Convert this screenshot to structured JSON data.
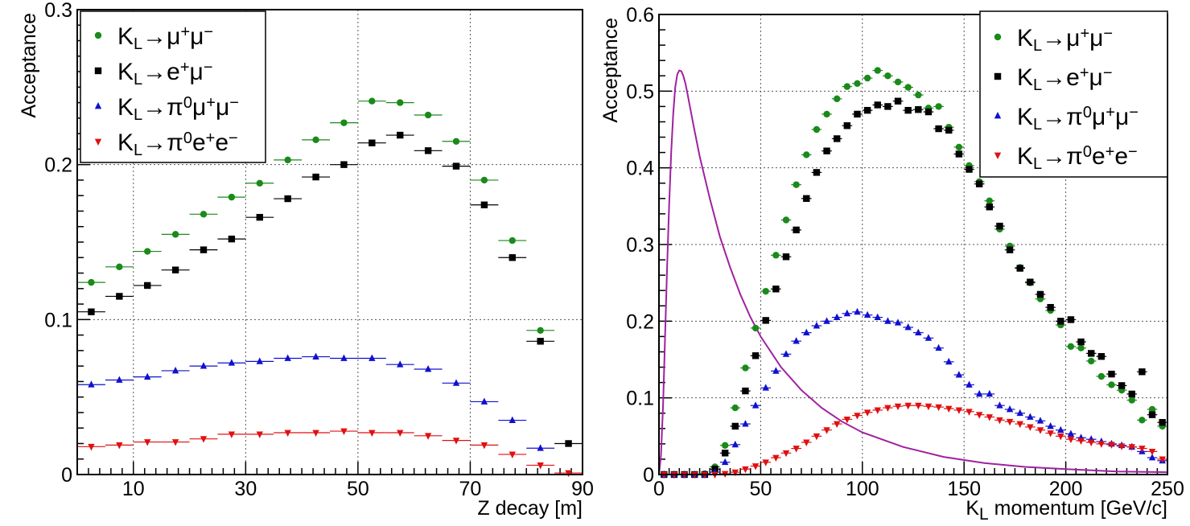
{
  "chart_data": [
    {
      "type": "scatter",
      "xlabel": "Z decay [m]",
      "ylabel": "Acceptance",
      "xlim": [
        0,
        90
      ],
      "ylim": [
        0,
        0.3
      ],
      "x_ticks": [
        "10",
        "30",
        "50",
        "70",
        "90"
      ],
      "y_ticks": [
        "0",
        "0.1",
        "0.2",
        "0.3"
      ],
      "grid": true,
      "legend_position": "top-left",
      "x_error_half_width": 2.5,
      "series": [
        {
          "name": "KL→μ+μ−",
          "color": "#1a8a1a",
          "marker": "circle",
          "x": [
            2.5,
            7.5,
            12.5,
            17.5,
            22.5,
            27.5,
            32.5,
            37.5,
            42.5,
            47.5,
            52.5,
            57.5,
            62.5,
            67.5,
            72.5,
            77.5,
            82.5
          ],
          "y": [
            0.124,
            0.134,
            0.144,
            0.155,
            0.168,
            0.179,
            0.188,
            0.203,
            0.216,
            0.227,
            0.241,
            0.24,
            0.232,
            0.215,
            0.19,
            0.151,
            0.093
          ]
        },
        {
          "name": "KL→e+μ−",
          "color": "#000000",
          "marker": "square",
          "x": [
            2.5,
            7.5,
            12.5,
            17.5,
            22.5,
            27.5,
            32.5,
            37.5,
            42.5,
            47.5,
            52.5,
            57.5,
            62.5,
            67.5,
            72.5,
            77.5,
            82.5,
            87.5
          ],
          "y": [
            0.105,
            0.115,
            0.122,
            0.132,
            0.145,
            0.152,
            0.166,
            0.178,
            0.192,
            0.2,
            0.214,
            0.219,
            0.209,
            0.199,
            0.174,
            0.14,
            0.086,
            0.02
          ]
        },
        {
          "name": "KL→π0μ+μ−",
          "color": "#1010d0",
          "marker": "triangle-up",
          "x": [
            2.5,
            7.5,
            12.5,
            17.5,
            22.5,
            27.5,
            32.5,
            37.5,
            42.5,
            47.5,
            52.5,
            57.5,
            62.5,
            67.5,
            72.5,
            77.5,
            82.5
          ],
          "y": [
            0.058,
            0.061,
            0.063,
            0.067,
            0.07,
            0.072,
            0.073,
            0.075,
            0.076,
            0.075,
            0.075,
            0.071,
            0.068,
            0.059,
            0.047,
            0.035,
            0.017
          ]
        },
        {
          "name": "KL→π0e+e−",
          "color": "#e01010",
          "marker": "triangle-down",
          "x": [
            2.5,
            7.5,
            12.5,
            17.5,
            22.5,
            27.5,
            32.5,
            37.5,
            42.5,
            47.5,
            52.5,
            57.5,
            62.5,
            67.5,
            72.5,
            77.5,
            82.5,
            87.5
          ],
          "y": [
            0.018,
            0.019,
            0.021,
            0.021,
            0.023,
            0.026,
            0.026,
            0.027,
            0.027,
            0.028,
            0.027,
            0.027,
            0.025,
            0.022,
            0.019,
            0.013,
            0.006,
            0.001
          ]
        }
      ]
    },
    {
      "type": "scatter",
      "xlabel": "KL momentum [GeV/c]",
      "xlabel_main": "K",
      "xlabel_sub": "L",
      "xlabel_rest": " momentum [GeV/c]",
      "ylabel": "Acceptance",
      "xlim": [
        0,
        250
      ],
      "ylim": [
        0,
        0.6
      ],
      "x_ticks": [
        "0",
        "50",
        "100",
        "150",
        "200",
        "250"
      ],
      "y_ticks": [
        "0",
        "0.1",
        "0.2",
        "0.3",
        "0.4",
        "0.5",
        "0.6"
      ],
      "grid": true,
      "legend_position": "top-right",
      "x_error_half_width": 2.5,
      "spectrum_curve": {
        "color": "#a020a0",
        "peak_x": 11,
        "peak_y": 0.527,
        "x": [
          0,
          1,
          2,
          3,
          4,
          5,
          6,
          7,
          8,
          9,
          10,
          11,
          12,
          13,
          14,
          15,
          17,
          20,
          25,
          30,
          35,
          40,
          45,
          50,
          60,
          70,
          80,
          90,
          100,
          120,
          140,
          160,
          180,
          200,
          225,
          250
        ],
        "y": [
          0.0,
          0.025,
          0.09,
          0.18,
          0.27,
          0.35,
          0.42,
          0.47,
          0.505,
          0.522,
          0.527,
          0.526,
          0.52,
          0.51,
          0.497,
          0.483,
          0.455,
          0.415,
          0.36,
          0.31,
          0.27,
          0.235,
          0.205,
          0.18,
          0.14,
          0.11,
          0.087,
          0.069,
          0.055,
          0.036,
          0.023,
          0.015,
          0.01,
          0.007,
          0.004,
          0.003
        ]
      },
      "series": [
        {
          "name": "KL→μ+μ−",
          "color": "#1a8a1a",
          "marker": "circle",
          "x": [
            2.5,
            7.5,
            12.5,
            17.5,
            22.5,
            27.5,
            32.5,
            37.5,
            42.5,
            47.5,
            52.5,
            57.5,
            62.5,
            67.5,
            72.5,
            77.5,
            82.5,
            87.5,
            92.5,
            97.5,
            102.5,
            107.5,
            112.5,
            117.5,
            122.5,
            127.5,
            132.5,
            137.5,
            142.5,
            147.5,
            152.5,
            157.5,
            162.5,
            167.5,
            172.5,
            177.5,
            182.5,
            187.5,
            192.5,
            197.5,
            202.5,
            207.5,
            212.5,
            217.5,
            222.5,
            227.5,
            232.5,
            237.5,
            242.5,
            247.5
          ],
          "y": [
            0.0,
            0.0,
            0.0,
            0.0,
            0.001,
            0.01,
            0.038,
            0.087,
            0.139,
            0.191,
            0.239,
            0.286,
            0.332,
            0.378,
            0.417,
            0.45,
            0.47,
            0.49,
            0.506,
            0.51,
            0.517,
            0.527,
            0.52,
            0.512,
            0.505,
            0.495,
            0.478,
            0.48,
            0.453,
            0.427,
            0.403,
            0.382,
            0.357,
            0.32,
            0.298,
            0.27,
            0.25,
            0.229,
            0.214,
            0.195,
            0.167,
            0.165,
            0.148,
            0.128,
            0.117,
            0.11,
            0.097,
            0.071,
            0.085,
            0.063
          ]
        },
        {
          "name": "KL→e+μ−",
          "color": "#000000",
          "marker": "square",
          "x": [
            2.5,
            7.5,
            12.5,
            17.5,
            22.5,
            27.5,
            32.5,
            37.5,
            42.5,
            47.5,
            52.5,
            57.5,
            62.5,
            67.5,
            72.5,
            77.5,
            82.5,
            87.5,
            92.5,
            97.5,
            102.5,
            107.5,
            112.5,
            117.5,
            122.5,
            127.5,
            132.5,
            137.5,
            142.5,
            147.5,
            152.5,
            157.5,
            162.5,
            167.5,
            172.5,
            177.5,
            182.5,
            187.5,
            192.5,
            197.5,
            202.5,
            207.5,
            212.5,
            217.5,
            222.5,
            227.5,
            232.5,
            237.5,
            242.5,
            247.5
          ],
          "y": [
            0.0,
            0.0,
            0.0,
            0.0,
            0.0,
            0.007,
            0.028,
            0.063,
            0.109,
            0.155,
            0.201,
            0.242,
            0.284,
            0.319,
            0.36,
            0.394,
            0.422,
            0.438,
            0.455,
            0.47,
            0.475,
            0.482,
            0.48,
            0.487,
            0.475,
            0.476,
            0.473,
            0.451,
            0.449,
            0.418,
            0.398,
            0.379,
            0.349,
            0.324,
            0.293,
            0.269,
            0.251,
            0.235,
            0.218,
            0.2,
            0.202,
            0.173,
            0.158,
            0.154,
            0.131,
            0.116,
            0.105,
            0.134,
            0.078,
            0.068
          ]
        },
        {
          "name": "KL→π0μ+μ−",
          "color": "#1010d0",
          "marker": "triangle-up",
          "x": [
            2.5,
            7.5,
            12.5,
            17.5,
            22.5,
            27.5,
            32.5,
            37.5,
            42.5,
            47.5,
            52.5,
            57.5,
            62.5,
            67.5,
            72.5,
            77.5,
            82.5,
            87.5,
            92.5,
            97.5,
            102.5,
            107.5,
            112.5,
            117.5,
            122.5,
            127.5,
            132.5,
            137.5,
            142.5,
            147.5,
            152.5,
            157.5,
            162.5,
            167.5,
            172.5,
            177.5,
            182.5,
            187.5,
            192.5,
            197.5,
            202.5,
            207.5,
            212.5,
            217.5,
            222.5,
            227.5,
            232.5,
            237.5,
            242.5,
            247.5
          ],
          "y": [
            0.0,
            0.0,
            0.0,
            0.0,
            0.0,
            0.003,
            0.016,
            0.039,
            0.066,
            0.09,
            0.113,
            0.135,
            0.157,
            0.174,
            0.185,
            0.194,
            0.2,
            0.205,
            0.21,
            0.212,
            0.208,
            0.205,
            0.2,
            0.198,
            0.192,
            0.185,
            0.178,
            0.165,
            0.147,
            0.13,
            0.117,
            0.105,
            0.105,
            0.09,
            0.085,
            0.08,
            0.075,
            0.07,
            0.063,
            0.058,
            0.053,
            0.048,
            0.046,
            0.043,
            0.04,
            0.038,
            0.036,
            0.03,
            0.022,
            0.018
          ]
        },
        {
          "name": "KL→π0e+e−",
          "color": "#e01010",
          "marker": "triangle-down",
          "x": [
            2.5,
            7.5,
            12.5,
            17.5,
            22.5,
            27.5,
            32.5,
            37.5,
            42.5,
            47.5,
            52.5,
            57.5,
            62.5,
            67.5,
            72.5,
            77.5,
            82.5,
            87.5,
            92.5,
            97.5,
            102.5,
            107.5,
            112.5,
            117.5,
            122.5,
            127.5,
            132.5,
            137.5,
            142.5,
            147.5,
            152.5,
            157.5,
            162.5,
            167.5,
            172.5,
            177.5,
            182.5,
            187.5,
            192.5,
            197.5,
            202.5,
            207.5,
            212.5,
            217.5,
            222.5,
            227.5,
            232.5,
            237.5,
            242.5,
            247.5
          ],
          "y": [
            0.0,
            0.0,
            0.0,
            0.0,
            0.0,
            0.0,
            0.001,
            0.003,
            0.007,
            0.011,
            0.016,
            0.022,
            0.028,
            0.034,
            0.042,
            0.05,
            0.058,
            0.066,
            0.072,
            0.077,
            0.081,
            0.084,
            0.087,
            0.089,
            0.09,
            0.09,
            0.089,
            0.088,
            0.086,
            0.084,
            0.082,
            0.078,
            0.075,
            0.071,
            0.069,
            0.066,
            0.062,
            0.058,
            0.054,
            0.05,
            0.046,
            0.044,
            0.042,
            0.04,
            0.039,
            0.037,
            0.036,
            0.034,
            0.03,
            0.02
          ]
        }
      ]
    }
  ]
}
